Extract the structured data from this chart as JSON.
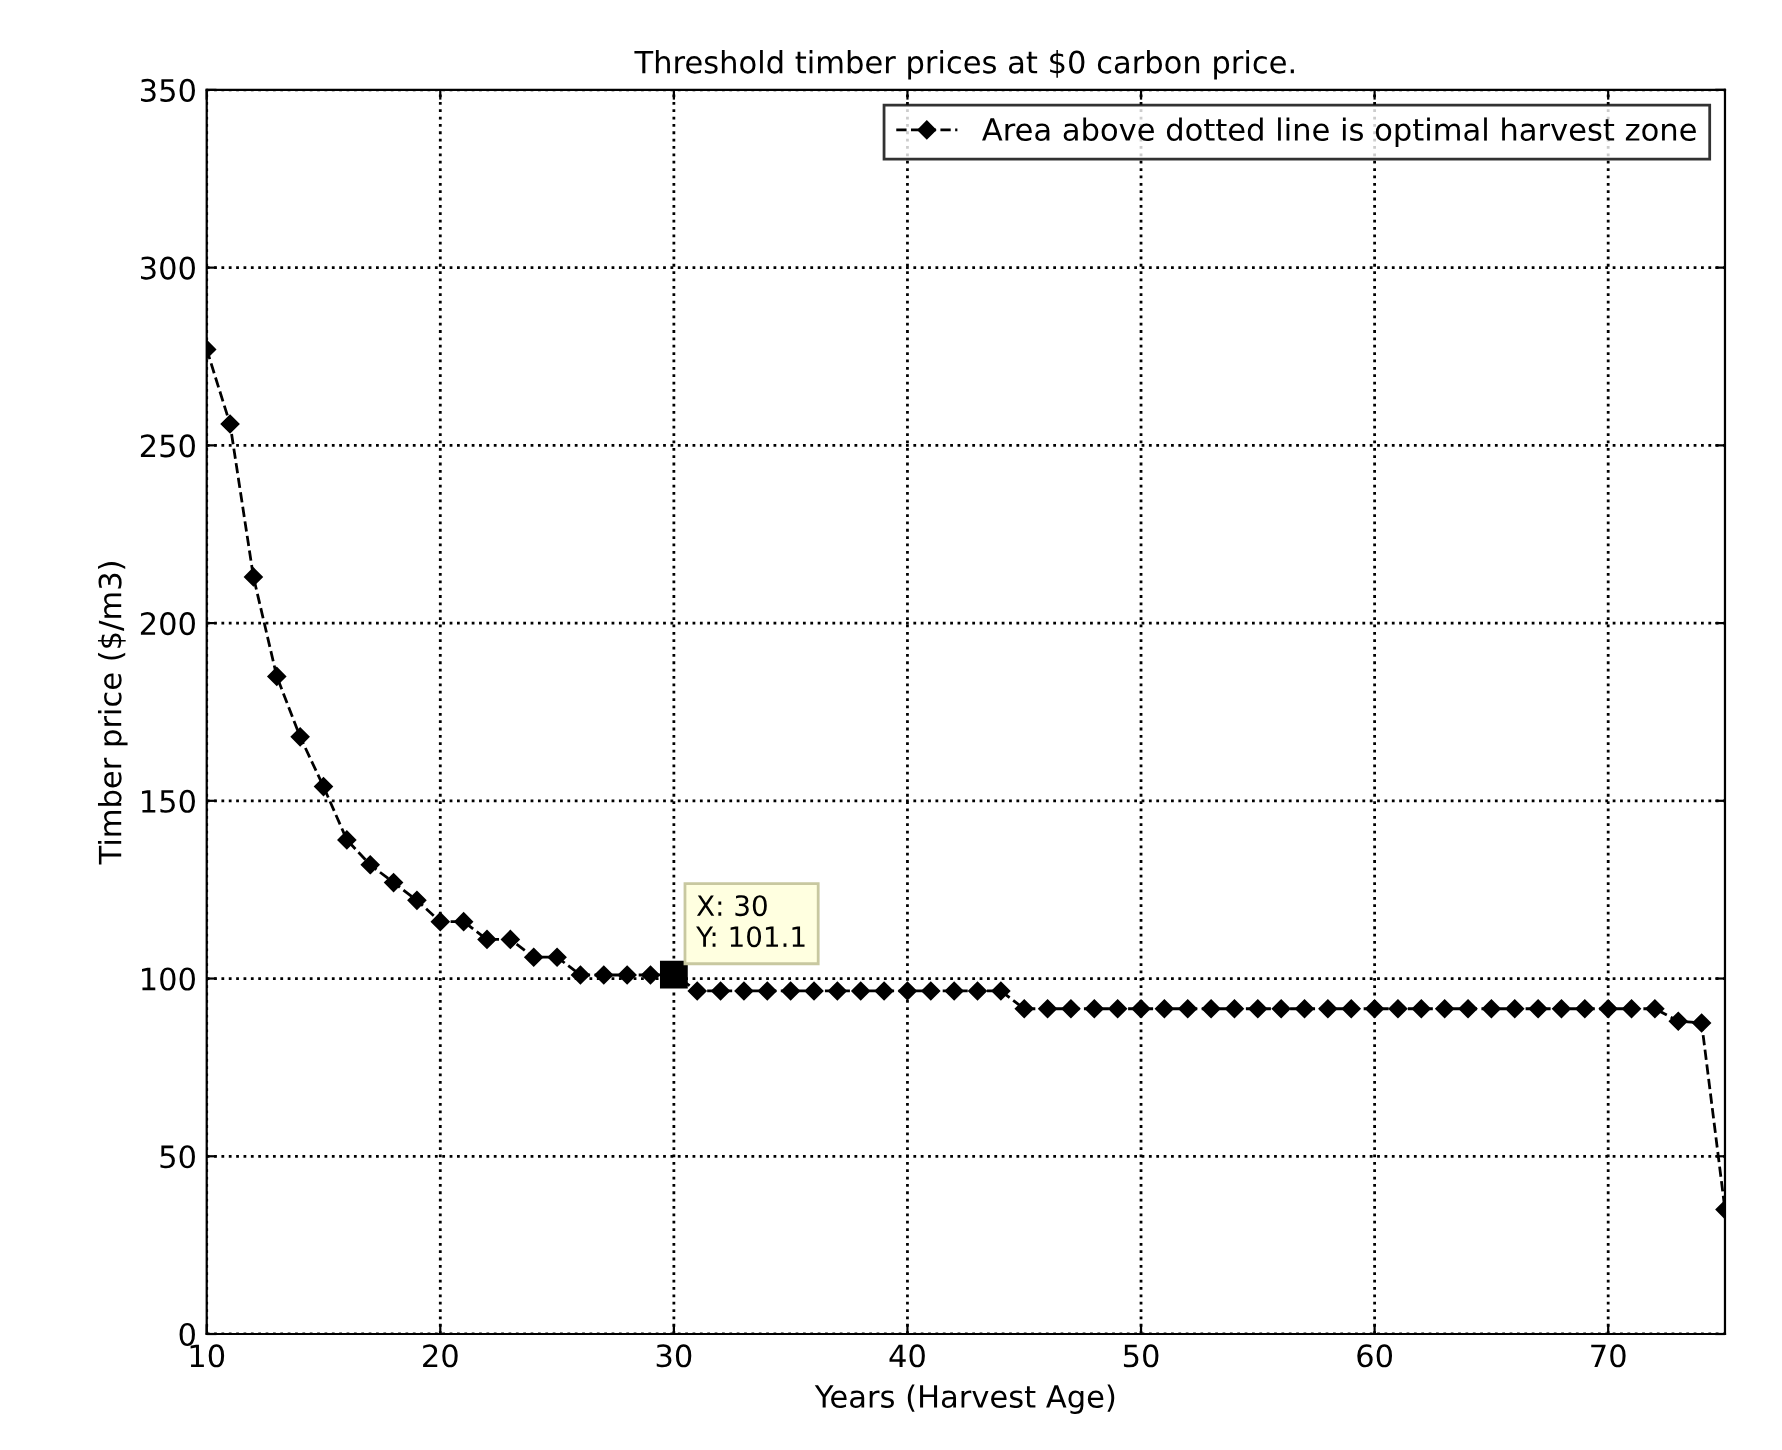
{
  "chart_data": {
    "type": "line",
    "title": "Threshold timber prices at $0 carbon price.",
    "xlabel": "Years (Harvest Age)",
    "ylabel": "Timber price ($/m3)",
    "x": [
      10,
      11,
      12,
      13,
      14,
      15,
      16,
      17,
      18,
      19,
      20,
      21,
      22,
      23,
      24,
      25,
      26,
      27,
      28,
      29,
      30,
      31,
      32,
      33,
      34,
      35,
      36,
      37,
      38,
      39,
      40,
      41,
      42,
      43,
      44,
      45,
      46,
      47,
      48,
      49,
      50,
      51,
      52,
      53,
      54,
      55,
      56,
      57,
      58,
      59,
      60,
      61,
      62,
      63,
      64,
      65,
      66,
      67,
      68,
      69,
      70,
      71,
      72,
      73,
      74,
      75
    ],
    "series": [
      {
        "name": "Area above dotted line is optimal harvest zone",
        "color": "#000000",
        "values": [
          277,
          256,
          213,
          185,
          168,
          154,
          139,
          132,
          127,
          122,
          116,
          116,
          111,
          111,
          106,
          106,
          101,
          101,
          101,
          101,
          101.1,
          96.5,
          96.5,
          96.5,
          96.5,
          96.5,
          96.5,
          96.5,
          96.5,
          96.5,
          96.5,
          96.5,
          96.5,
          96.5,
          96.5,
          91.5,
          91.5,
          91.5,
          91.5,
          91.5,
          91.5,
          91.5,
          91.5,
          91.5,
          91.5,
          91.5,
          91.5,
          91.5,
          91.5,
          91.5,
          91.5,
          91.5,
          91.5,
          91.5,
          91.5,
          91.5,
          91.5,
          91.5,
          91.5,
          91.5,
          91.5,
          91.5,
          91.5,
          88,
          87.5,
          35
        ]
      }
    ],
    "annotations": [
      {
        "text": "X: 30\nY: 101.1",
        "x": 30,
        "y": 101.1
      }
    ],
    "xlim": [
      10,
      75
    ],
    "ylim": [
      0,
      350
    ],
    "xticks": [
      10,
      20,
      30,
      40,
      50,
      60,
      70
    ],
    "yticks": [
      0,
      50,
      100,
      150,
      200,
      250,
      300,
      350
    ],
    "grid": true,
    "legend": "top right",
    "marker": "diamond",
    "line_style": "dashed"
  }
}
